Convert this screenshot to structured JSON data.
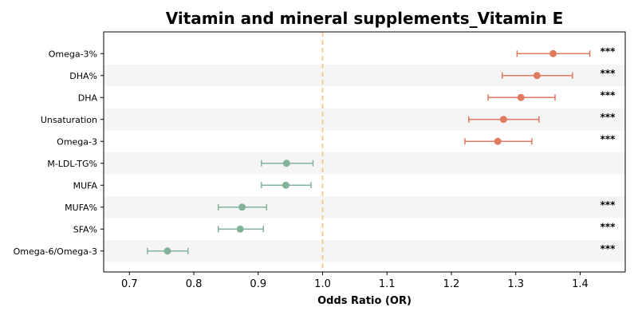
{
  "chart_data": {
    "type": "forest",
    "title": "Vitamin and mineral supplements_Vitamin E",
    "xlabel": "Odds Ratio (OR)",
    "xlim": [
      0.66,
      1.47
    ],
    "xticks": [
      0.7,
      0.8,
      0.9,
      1.0,
      1.1,
      1.2,
      1.3,
      1.4
    ],
    "xtick_labels": [
      "0.7",
      "0.8",
      "0.9",
      "1.0",
      "1.1",
      "1.2",
      "1.3",
      "1.4"
    ],
    "reference_line": 1.0,
    "rows": [
      {
        "label": "Omega-3%",
        "or": 1.358,
        "ci_low": 1.302,
        "ci_high": 1.415,
        "sig": "***"
      },
      {
        "label": "DHA%",
        "or": 1.333,
        "ci_low": 1.279,
        "ci_high": 1.388,
        "sig": "***"
      },
      {
        "label": "DHA",
        "or": 1.308,
        "ci_low": 1.257,
        "ci_high": 1.361,
        "sig": "***"
      },
      {
        "label": "Unsaturation",
        "or": 1.281,
        "ci_low": 1.227,
        "ci_high": 1.336,
        "sig": "***"
      },
      {
        "label": "Omega-3",
        "or": 1.272,
        "ci_low": 1.221,
        "ci_high": 1.325,
        "sig": "***"
      },
      {
        "label": "M-LDL-TG%",
        "or": 0.944,
        "ci_low": 0.905,
        "ci_high": 0.985,
        "sig": ""
      },
      {
        "label": "MUFA",
        "or": 0.943,
        "ci_low": 0.905,
        "ci_high": 0.982,
        "sig": ""
      },
      {
        "label": "MUFA%",
        "or": 0.875,
        "ci_low": 0.838,
        "ci_high": 0.913,
        "sig": "***"
      },
      {
        "label": "SFA%",
        "or": 0.872,
        "ci_low": 0.838,
        "ci_high": 0.908,
        "sig": "***"
      },
      {
        "label": "Omega-6/Omega-3",
        "or": 0.759,
        "ci_low": 0.728,
        "ci_high": 0.791,
        "sig": "***"
      }
    ],
    "colors": {
      "above_one": "#e07a5f",
      "below_one": "#81b29a",
      "reference_line": "#f2cc8f",
      "band": "#f5f5f5"
    },
    "grid": false,
    "legend": "none"
  }
}
